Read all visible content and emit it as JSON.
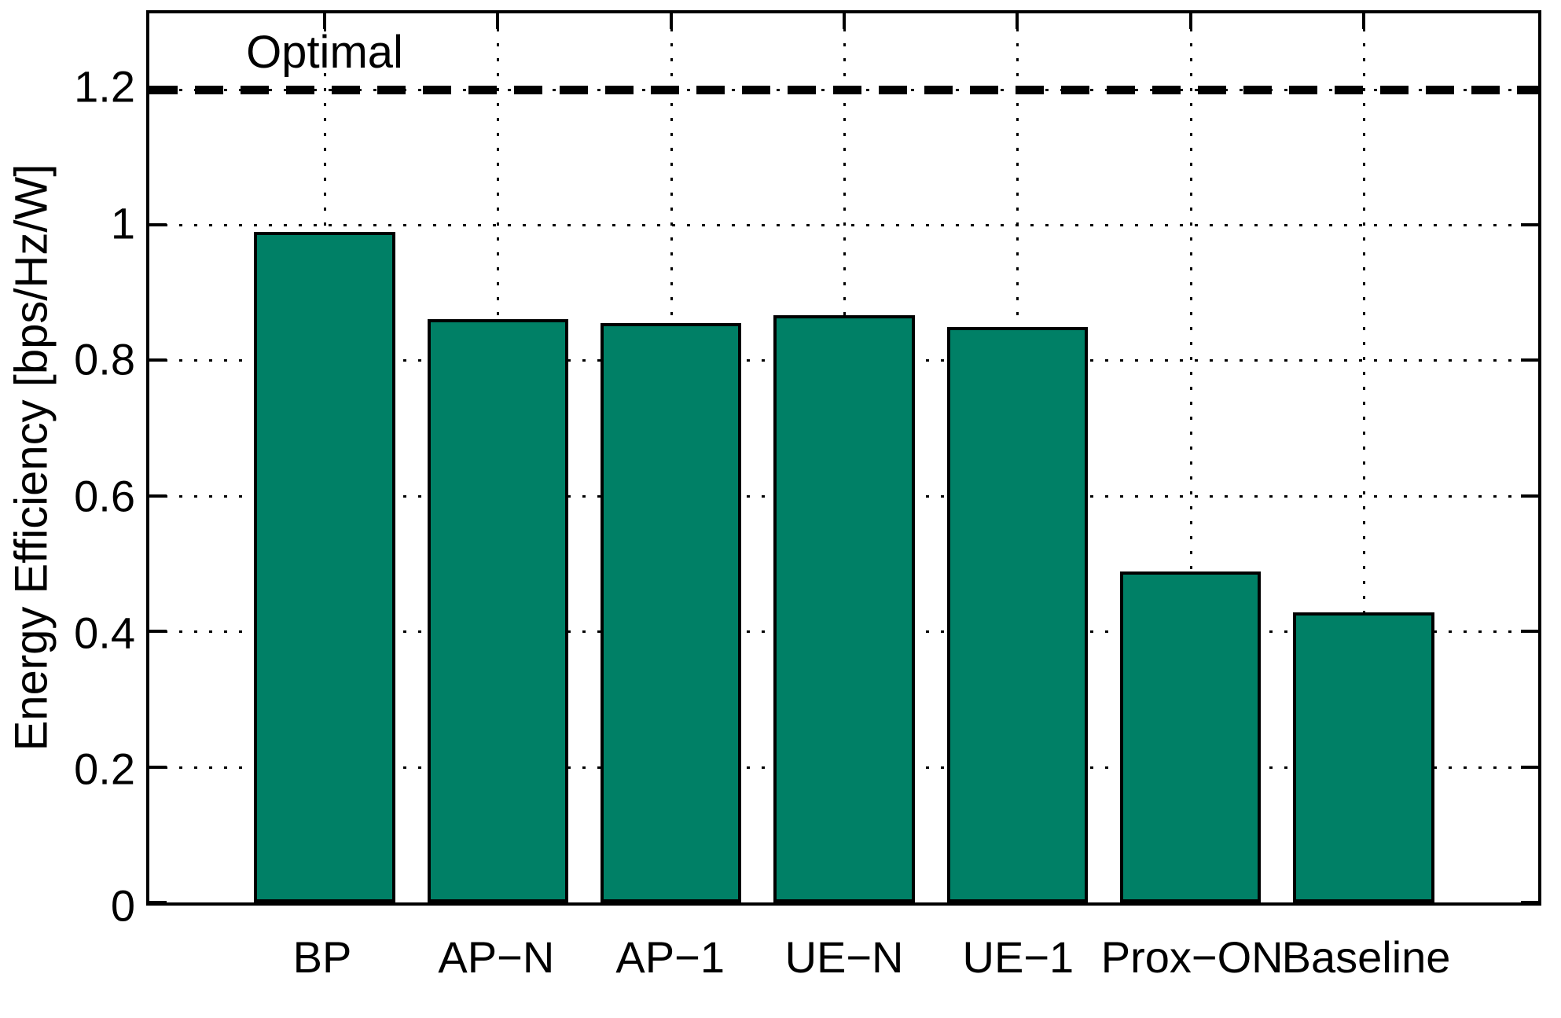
{
  "chart_data": {
    "type": "bar",
    "title": "",
    "categories": [
      "BP",
      "AP−N",
      "AP−1",
      "UE−N",
      "UE−1",
      "Prox−ON",
      "Baseline"
    ],
    "values": [
      0.99,
      0.861,
      0.855,
      0.866,
      0.849,
      0.488,
      0.428
    ],
    "xlabel": "",
    "ylabel": "Energy Efficiency [bps/Hz/W]",
    "yticks": [
      0,
      0.2,
      0.4,
      0.6,
      0.8,
      1,
      1.2
    ],
    "ytick_labels": [
      "0",
      "0.2",
      "0.4",
      "0.6",
      "0.8",
      "1",
      "1.2"
    ],
    "ylim": [
      0,
      1.312
    ],
    "grid": "dotted black, horizontal at yticks, vertical at bar centers",
    "legend": "none",
    "bar_color": "#008066",
    "bar_edge_color": "#000000",
    "optimal_line": {
      "value": 1.2,
      "label": "Optimal",
      "style": "dashed",
      "color": "#000000"
    }
  }
}
